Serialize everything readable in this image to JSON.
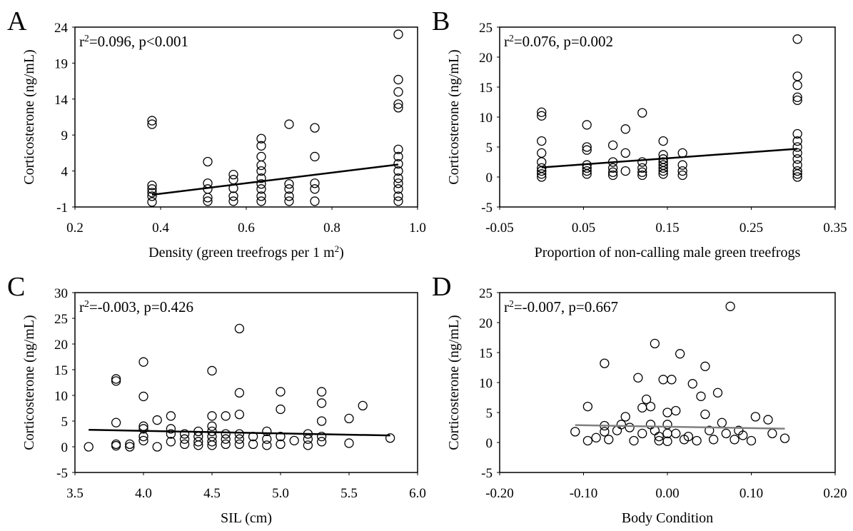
{
  "chart_data": [
    {
      "type": "scatter",
      "panel": "A",
      "annotation": [
        "r",
        "2",
        "=0.096, p<0.001"
      ],
      "x_label": [
        "Density (green treefrogs per 1 m",
        "2",
        ")"
      ],
      "y_label": "Corticosterone (ng/mL)",
      "marker_color": "#000000",
      "x": [
        0.38,
        0.38,
        0.38,
        0.38,
        0.38,
        0.38,
        0.38,
        0.51,
        0.51,
        0.51,
        0.51,
        0.51,
        0.57,
        0.57,
        0.57,
        0.57,
        0.57,
        0.635,
        0.635,
        0.635,
        0.635,
        0.635,
        0.635,
        0.635,
        0.635,
        0.635,
        0.635,
        0.7,
        0.7,
        0.7,
        0.7,
        0.7,
        0.76,
        0.76,
        0.76,
        0.76,
        0.76,
        0.955,
        0.955,
        0.955,
        0.955,
        0.955,
        0.955,
        0.955,
        0.955,
        0.955,
        0.955,
        0.955,
        0.955,
        0.955,
        0.955
      ],
      "y": [
        11,
        10.5,
        2,
        1.5,
        1,
        0.5,
        -0.3,
        5.3,
        2.3,
        1.5,
        0.3,
        -0.2,
        3.5,
        2.8,
        1.6,
        0.5,
        -0.2,
        8.5,
        7.5,
        6,
        4.8,
        4,
        3,
        2.2,
        1.5,
        0.5,
        -0.2,
        10.5,
        2.2,
        1.5,
        0.5,
        -0.2,
        10,
        6,
        2.3,
        1.5,
        -0.2,
        23,
        16.7,
        15,
        13.3,
        12.8,
        7,
        6,
        5,
        4,
        3,
        2.3,
        1.5,
        0.5,
        -0.2
      ],
      "trendline": {
        "x": [
          0.38,
          0.955
        ],
        "y": [
          0.7,
          4.9
        ],
        "color": "#000000"
      },
      "xlim": [
        0.2,
        1.0
      ],
      "ylim": [
        -1,
        24
      ],
      "xticks": [
        0.2,
        0.4,
        0.6,
        0.8,
        {
          "value": 1,
          "label": "1.0"
        }
      ],
      "yticks": [
        -1,
        4,
        9,
        14,
        19,
        24
      ]
    },
    {
      "type": "scatter",
      "panel": "B",
      "annotation": [
        "r",
        "2",
        "=0.076, p=0.002"
      ],
      "x_label": "Proportion of non-calling  male green  treefrogs",
      "y_label": "Corticosterone (ng/mL)",
      "marker_color": "#000000",
      "x": [
        0,
        0,
        0,
        0,
        0,
        0,
        0,
        0,
        0,
        0.054,
        0.054,
        0.054,
        0.054,
        0.054,
        0.054,
        0.054,
        0.085,
        0.085,
        0.085,
        0.085,
        0.085,
        0.1,
        0.1,
        0.1,
        0.12,
        0.12,
        0.12,
        0.12,
        0.12,
        0.145,
        0.145,
        0.145,
        0.145,
        0.145,
        0.145,
        0.145,
        0.145,
        0.168,
        0.168,
        0.168,
        0.168,
        0.305,
        0.305,
        0.305,
        0.305,
        0.305,
        0.305,
        0.305,
        0.305,
        0.305,
        0.305,
        0.305,
        0.305,
        0.305,
        0.305
      ],
      "y": [
        10.8,
        10.2,
        6,
        4,
        2.5,
        1.5,
        1,
        0.5,
        0,
        8.7,
        5,
        4.5,
        2,
        1.5,
        1,
        0.5,
        5.3,
        2.5,
        1.5,
        0.8,
        0.3,
        8,
        4,
        1,
        10.7,
        2.5,
        1.5,
        0.8,
        0.3,
        6,
        3.7,
        3,
        2.5,
        2,
        1.5,
        1,
        0.5,
        4,
        2,
        1,
        0.3,
        23,
        16.8,
        15.3,
        13.3,
        12.8,
        7.2,
        6,
        5,
        4,
        3,
        2,
        1,
        0.5,
        0
      ],
      "trendline": {
        "x": [
          0,
          0.305
        ],
        "y": [
          1.6,
          4.7
        ],
        "color": "#000000"
      },
      "xlim": [
        -0.05,
        0.35
      ],
      "ylim": [
        -5,
        25
      ],
      "xticks": [
        -0.05,
        0.05,
        0.15,
        0.25,
        0.35
      ],
      "yticks": [
        -5,
        0,
        5,
        10,
        15,
        20,
        25
      ]
    },
    {
      "type": "scatter",
      "panel": "C",
      "annotation": [
        "r",
        "2",
        "=-0.003, p=0.426"
      ],
      "x_label": "SIL  (cm)",
      "y_label": "Corticosterone (ng/mL)",
      "marker_color": "#000000",
      "x": [
        3.6,
        3.8,
        3.8,
        3.8,
        3.8,
        3.8,
        3.9,
        3.9,
        4.0,
        4.0,
        4.0,
        4.0,
        4.0,
        4.0,
        4.1,
        4.1,
        4.2,
        4.2,
        4.2,
        4.2,
        4.3,
        4.3,
        4.3,
        4.4,
        4.4,
        4.4,
        4.4,
        4.5,
        4.5,
        4.5,
        4.5,
        4.5,
        4.5,
        4.5,
        4.6,
        4.6,
        4.6,
        4.6,
        4.7,
        4.7,
        4.7,
        4.7,
        4.7,
        4.7,
        4.8,
        4.8,
        4.9,
        4.9,
        4.9,
        5.0,
        5.0,
        5.0,
        5.0,
        5.1,
        5.2,
        5.2,
        5.2,
        5.3,
        5.3,
        5.3,
        5.3,
        5.3,
        5.5,
        5.5,
        5.6,
        5.8
      ],
      "y": [
        0,
        13.2,
        12.8,
        4.7,
        0.5,
        0.2,
        0.5,
        0,
        16.5,
        9.8,
        4,
        3.5,
        2,
        1.2,
        5.2,
        0,
        6,
        3.5,
        2.5,
        1,
        2.5,
        1.5,
        0.5,
        3,
        2,
        1,
        0.3,
        14.8,
        6,
        4,
        3,
        2,
        1,
        0.3,
        6,
        2.5,
        1.5,
        0.5,
        23,
        10.5,
        6.3,
        2.5,
        1.5,
        0.5,
        2,
        0.5,
        3,
        1.5,
        0.3,
        10.7,
        7.3,
        2,
        0.5,
        1.2,
        2.5,
        1.5,
        0.3,
        10.7,
        8.5,
        5,
        2,
        1,
        5.5,
        0.7,
        8,
        1.7
      ],
      "trendline": {
        "x": [
          3.6,
          5.8
        ],
        "y": [
          3.3,
          2.2
        ],
        "color": "#000000"
      },
      "xlim": [
        3.5,
        6.0
      ],
      "ylim": [
        -5,
        30
      ],
      "xticks": [
        3.5,
        {
          "value": 4,
          "label": "4.0"
        },
        4.5,
        {
          "value": 5,
          "label": "5.0"
        },
        5.5,
        {
          "value": 6,
          "label": "6.0"
        }
      ],
      "yticks": [
        -5,
        0,
        5,
        10,
        15,
        20,
        25,
        30
      ]
    },
    {
      "type": "scatter",
      "panel": "D",
      "annotation": [
        "r",
        "2",
        "=-0.007, p=0.667"
      ],
      "x_label": "Body Condition",
      "y_label": "Corticosterone (ng/mL)",
      "marker_color": "#000000",
      "x": [
        -0.11,
        -0.095,
        -0.095,
        -0.085,
        -0.075,
        -0.075,
        -0.075,
        -0.07,
        -0.06,
        -0.055,
        -0.05,
        -0.045,
        -0.04,
        -0.035,
        -0.03,
        -0.03,
        -0.025,
        -0.02,
        -0.02,
        -0.015,
        -0.015,
        -0.01,
        -0.01,
        -0.005,
        0,
        0,
        0,
        0,
        0.005,
        0.01,
        0.01,
        0.015,
        0.02,
        0.025,
        0.03,
        0.035,
        0.04,
        0.045,
        0.045,
        0.05,
        0.055,
        0.06,
        0.065,
        0.07,
        0.075,
        0.08,
        0.085,
        0.09,
        0.1,
        0.105,
        0.12,
        0.125,
        0.14
      ],
      "y": [
        1.8,
        6,
        0.3,
        0.8,
        13.2,
        2.8,
        1.8,
        0.5,
        2,
        3,
        4.3,
        2.5,
        0.3,
        10.8,
        5.8,
        1.5,
        7.2,
        6,
        3,
        16.5,
        2,
        1,
        0.3,
        10.5,
        5,
        3,
        1.5,
        0.2,
        10.5,
        5.3,
        1.5,
        14.8,
        0.5,
        1,
        9.8,
        0.3,
        7.7,
        12.7,
        4.7,
        2,
        0.5,
        8.3,
        3.3,
        1.5,
        22.7,
        0.5,
        2,
        1.2,
        0.3,
        4.3,
        3.8,
        1.5,
        0.7
      ],
      "trendline": {
        "x": [
          -0.11,
          0.14
        ],
        "y": [
          2.9,
          2.3
        ],
        "color": "#808080"
      },
      "xlim": [
        -0.2,
        0.2
      ],
      "ylim": [
        -5,
        25
      ],
      "xticks": [
        {
          "value": -0.2,
          "label": "-0.20"
        },
        {
          "value": -0.1,
          "label": "-0.10"
        },
        {
          "value": 0,
          "label": "0.00"
        },
        {
          "value": 0.1,
          "label": "0.10"
        },
        {
          "value": 0.2,
          "label": "0.20"
        }
      ],
      "yticks": [
        -5,
        0,
        5,
        10,
        15,
        20,
        25
      ]
    }
  ]
}
